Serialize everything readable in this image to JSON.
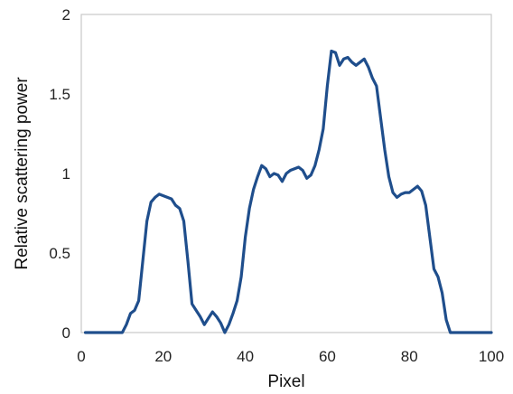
{
  "chart_data": {
    "type": "line",
    "title": "",
    "xlabel": "Pixel",
    "ylabel": "Relative scattering power",
    "xlim": [
      0,
      100
    ],
    "ylim": [
      0,
      2
    ],
    "x_ticks": [
      0,
      20,
      40,
      60,
      80,
      100
    ],
    "y_ticks": [
      0,
      0.5,
      1,
      1.5,
      2
    ],
    "x_tick_labels": [
      "0",
      "20",
      "40",
      "60",
      "80",
      "100"
    ],
    "y_tick_labels": [
      "0",
      "0.5",
      "1",
      "1.5",
      "2"
    ],
    "grid": false,
    "frame": true,
    "series": [
      {
        "color": "#1f4e8c",
        "x": [
          1,
          2,
          3,
          4,
          5,
          6,
          7,
          8,
          9,
          10,
          11,
          12,
          13,
          14,
          15,
          16,
          17,
          18,
          19,
          20,
          21,
          22,
          23,
          24,
          25,
          26,
          27,
          28,
          29,
          30,
          31,
          32,
          33,
          34,
          35,
          36,
          37,
          38,
          39,
          40,
          41,
          42,
          43,
          44,
          45,
          46,
          47,
          48,
          49,
          50,
          51,
          52,
          53,
          54,
          55,
          56,
          57,
          58,
          59,
          60,
          61,
          62,
          63,
          64,
          65,
          66,
          67,
          68,
          69,
          70,
          71,
          72,
          73,
          74,
          75,
          76,
          77,
          78,
          79,
          80,
          81,
          82,
          83,
          84,
          85,
          86,
          87,
          88,
          89,
          90,
          91,
          92,
          93,
          94,
          95,
          96,
          97,
          98,
          99,
          100
        ],
        "values": [
          0,
          0,
          0,
          0,
          0,
          0,
          0,
          0,
          0,
          0,
          0.05,
          0.12,
          0.14,
          0.2,
          0.45,
          0.7,
          0.82,
          0.85,
          0.87,
          0.86,
          0.85,
          0.84,
          0.8,
          0.78,
          0.7,
          0.45,
          0.18,
          0.14,
          0.1,
          0.05,
          0.09,
          0.13,
          0.1,
          0.06,
          0.0,
          0.05,
          0.12,
          0.2,
          0.35,
          0.6,
          0.78,
          0.9,
          0.98,
          1.05,
          1.03,
          0.98,
          1.0,
          0.99,
          0.95,
          1.0,
          1.02,
          1.03,
          1.04,
          1.02,
          0.97,
          0.99,
          1.05,
          1.15,
          1.28,
          1.55,
          1.77,
          1.76,
          1.68,
          1.72,
          1.73,
          1.7,
          1.68,
          1.7,
          1.72,
          1.67,
          1.6,
          1.55,
          1.35,
          1.15,
          0.98,
          0.88,
          0.85,
          0.87,
          0.88,
          0.88,
          0.9,
          0.92,
          0.89,
          0.8,
          0.6,
          0.4,
          0.35,
          0.25,
          0.08,
          0.0,
          0,
          0,
          0,
          0,
          0,
          0,
          0,
          0,
          0,
          0
        ]
      }
    ]
  }
}
